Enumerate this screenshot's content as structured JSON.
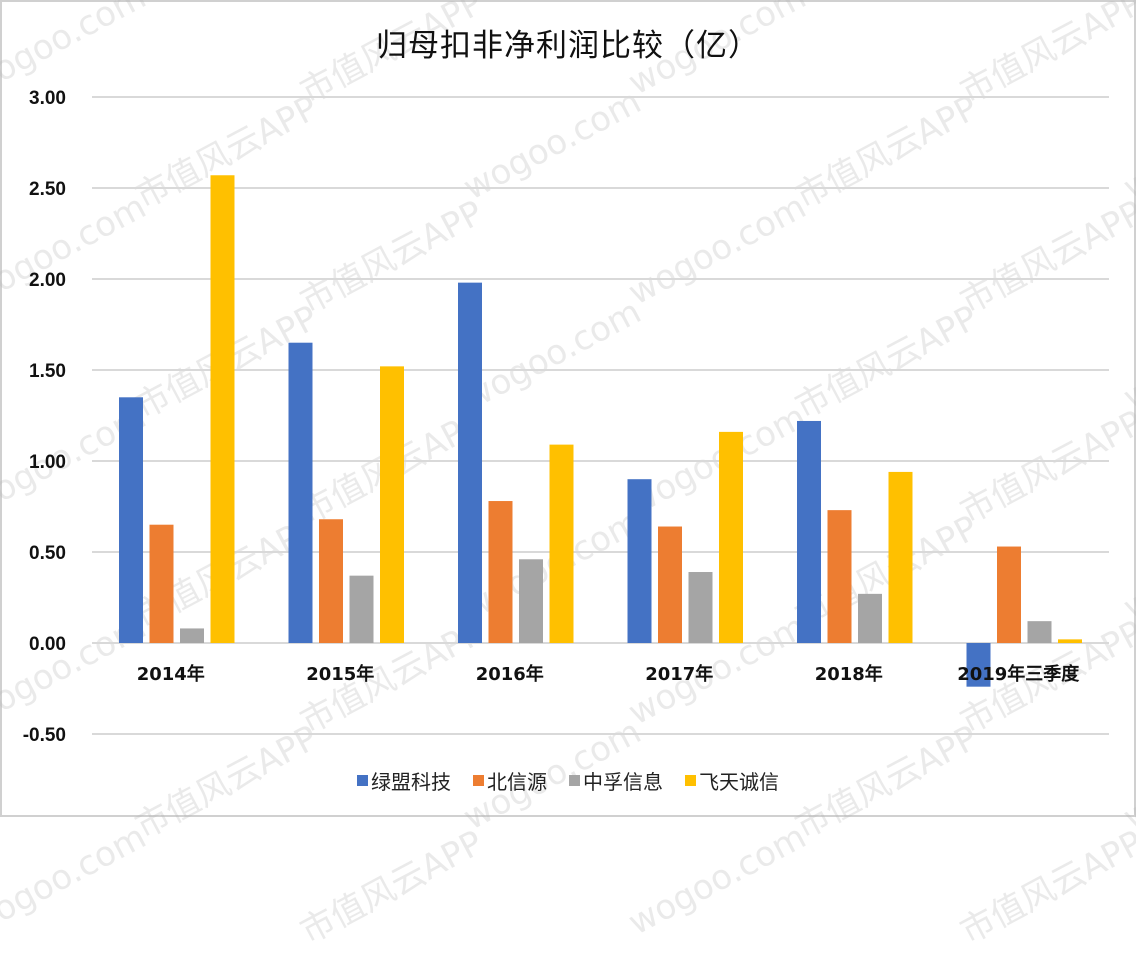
{
  "title": "归母扣非净利润比较（亿）",
  "colors": {
    "绿盟科技": "#4472C4",
    "北信源": "#ED7D31",
    "中孚信息": "#A5A5A5",
    "飞天诚信": "#FFC000",
    "gridline": "#d9d9d9",
    "border": "#d0d0d0"
  },
  "legend": [
    {
      "label": "绿盟科技",
      "color": "#4472C4"
    },
    {
      "label": "北信源",
      "color": "#ED7D31"
    },
    {
      "label": "中孚信息",
      "color": "#A5A5A5"
    },
    {
      "label": "飞天诚信",
      "color": "#FFC000"
    }
  ],
  "watermark_texts": [
    "wogoo.com",
    "市值风云APP"
  ],
  "chart_data": {
    "type": "bar",
    "title": "归母扣非净利润比较（亿）",
    "xlabel": "",
    "ylabel": "",
    "categories": [
      "2014年",
      "2015年",
      "2016年",
      "2017年",
      "2018年",
      "2019年三季度"
    ],
    "series": [
      {
        "name": "绿盟科技",
        "color": "#4472C4",
        "values": [
          1.35,
          1.65,
          1.98,
          0.9,
          1.22,
          -0.24
        ]
      },
      {
        "name": "北信源",
        "color": "#ED7D31",
        "values": [
          0.65,
          0.68,
          0.78,
          0.64,
          0.73,
          0.53
        ]
      },
      {
        "name": "中孚信息",
        "color": "#A5A5A5",
        "values": [
          0.08,
          0.37,
          0.46,
          0.39,
          0.27,
          0.12
        ]
      },
      {
        "name": "飞天诚信",
        "color": "#FFC000",
        "values": [
          2.57,
          1.52,
          1.09,
          1.16,
          0.94,
          0.02
        ]
      }
    ],
    "yticks": [
      "3.00",
      "2.50",
      "2.00",
      "1.50",
      "1.00",
      "0.50",
      "0.00",
      "-0.50"
    ],
    "ylim": [
      -0.5,
      3.0
    ],
    "grid": true,
    "legend_position": "bottom"
  }
}
